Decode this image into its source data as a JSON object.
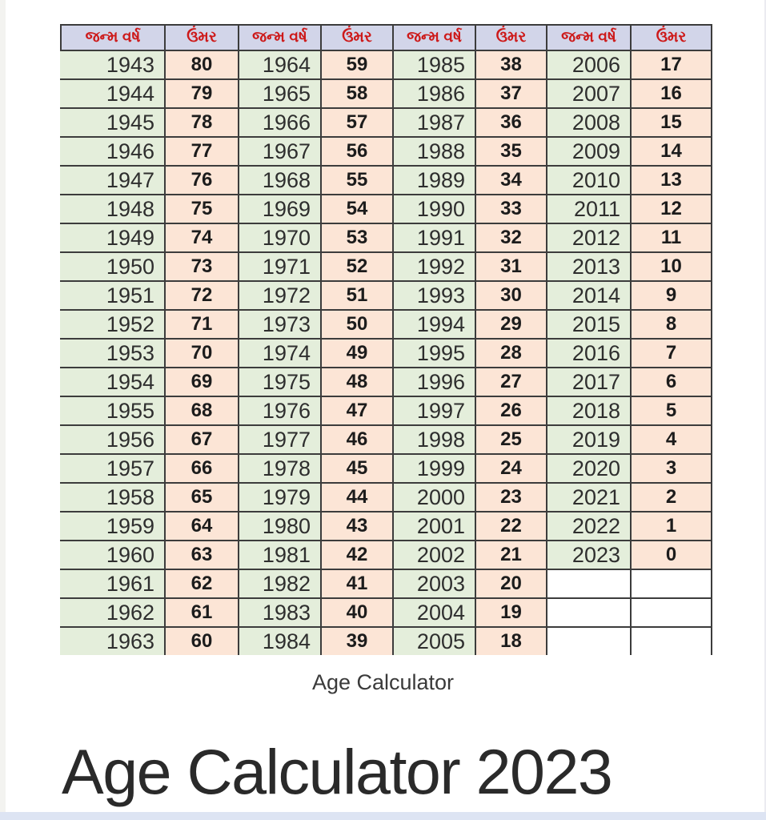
{
  "page": {
    "caption": "Age Calculator",
    "title": "Age Calculator 2023"
  },
  "colors": {
    "grid_line": "#3c3c3c",
    "header_bg": "#d2d5e9",
    "header_text": "#cd1a1a",
    "year_bg": "#e4eedb",
    "age_bg": "#fce5d6",
    "bottom_strip": "#dde4f3"
  },
  "table": {
    "header_labels": {
      "birth_year": "જન્મ વર્ષ",
      "age": "ઉંમર"
    },
    "column_pairs": 4,
    "rows": [
      [
        "1943",
        "80",
        "1964",
        "59",
        "1985",
        "38",
        "2006",
        "17"
      ],
      [
        "1944",
        "79",
        "1965",
        "58",
        "1986",
        "37",
        "2007",
        "16"
      ],
      [
        "1945",
        "78",
        "1966",
        "57",
        "1987",
        "36",
        "2008",
        "15"
      ],
      [
        "1946",
        "77",
        "1967",
        "56",
        "1988",
        "35",
        "2009",
        "14"
      ],
      [
        "1947",
        "76",
        "1968",
        "55",
        "1989",
        "34",
        "2010",
        "13"
      ],
      [
        "1948",
        "75",
        "1969",
        "54",
        "1990",
        "33",
        "2011",
        "12"
      ],
      [
        "1949",
        "74",
        "1970",
        "53",
        "1991",
        "32",
        "2012",
        "11"
      ],
      [
        "1950",
        "73",
        "1971",
        "52",
        "1992",
        "31",
        "2013",
        "10"
      ],
      [
        "1951",
        "72",
        "1972",
        "51",
        "1993",
        "30",
        "2014",
        "9"
      ],
      [
        "1952",
        "71",
        "1973",
        "50",
        "1994",
        "29",
        "2015",
        "8"
      ],
      [
        "1953",
        "70",
        "1974",
        "49",
        "1995",
        "28",
        "2016",
        "7"
      ],
      [
        "1954",
        "69",
        "1975",
        "48",
        "1996",
        "27",
        "2017",
        "6"
      ],
      [
        "1955",
        "68",
        "1976",
        "47",
        "1997",
        "26",
        "2018",
        "5"
      ],
      [
        "1956",
        "67",
        "1977",
        "46",
        "1998",
        "25",
        "2019",
        "4"
      ],
      [
        "1957",
        "66",
        "1978",
        "45",
        "1999",
        "24",
        "2020",
        "3"
      ],
      [
        "1958",
        "65",
        "1979",
        "44",
        "2000",
        "23",
        "2021",
        "2"
      ],
      [
        "1959",
        "64",
        "1980",
        "43",
        "2001",
        "22",
        "2022",
        "1"
      ],
      [
        "1960",
        "63",
        "1981",
        "42",
        "2002",
        "21",
        "2023",
        "0"
      ],
      [
        "1961",
        "62",
        "1982",
        "41",
        "2003",
        "20",
        "",
        ""
      ],
      [
        "1962",
        "61",
        "1983",
        "40",
        "2004",
        "19",
        "",
        ""
      ],
      [
        "1963",
        "60",
        "1984",
        "39",
        "2005",
        "18",
        "",
        ""
      ]
    ]
  }
}
